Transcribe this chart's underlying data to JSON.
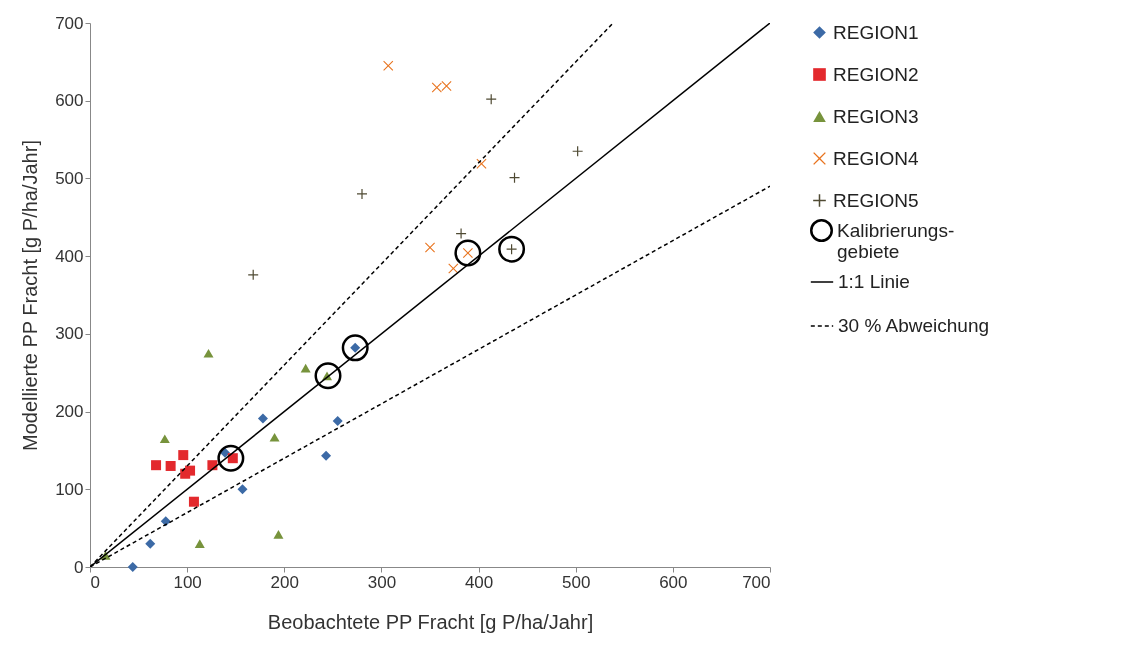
{
  "chart_data": {
    "type": "scatter",
    "xlabel": "Beobachtete PP Fracht [g P/ha/Jahr]",
    "ylabel": "Modellierte PP Fracht [g P/ha/Jahr]",
    "xlim": [
      0,
      700
    ],
    "ylim": [
      0,
      700
    ],
    "xticks": [
      0,
      100,
      200,
      300,
      400,
      500,
      600,
      700
    ],
    "yticks": [
      0,
      100,
      200,
      300,
      400,
      500,
      600,
      700
    ],
    "grid": false,
    "legend": "right",
    "series": [
      {
        "name": "REGION1",
        "color": "#3c6aa6",
        "marker": "diamond",
        "x": [
          44,
          62,
          78,
          157,
          178,
          243,
          255,
          273,
          139
        ],
        "values": [
          0,
          30,
          59,
          100,
          191,
          143,
          188,
          282,
          147
        ]
      },
      {
        "name": "REGION2",
        "color": "#e3292d",
        "marker": "square",
        "x": [
          68,
          83,
          96,
          98,
          103,
          126,
          147,
          107
        ],
        "values": [
          131,
          130,
          144,
          120,
          124,
          131,
          140,
          84
        ]
      },
      {
        "name": "REGION3",
        "color": "#77933c",
        "marker": "triangle",
        "x": [
          16,
          122,
          77,
          190,
          222,
          244,
          113,
          194
        ],
        "values": [
          15,
          275,
          165,
          167,
          256,
          246,
          30,
          42
        ]
      },
      {
        "name": "REGION4",
        "color": "#e8731e",
        "marker": "cross",
        "x": [
          307,
          357,
          367,
          403,
          350,
          389,
          374
        ],
        "values": [
          645,
          617,
          619,
          519,
          411,
          404,
          384
        ]
      },
      {
        "name": "REGION5",
        "color": "#4f4a33",
        "marker": "plus",
        "x": [
          413,
          502,
          437,
          280,
          168,
          382,
          434
        ],
        "values": [
          602,
          535,
          501,
          480,
          376,
          429,
          409
        ]
      },
      {
        "name": "1:1 Linie",
        "type": "line",
        "color": "#000000",
        "line_style": "solid",
        "marker": "none",
        "x": [
          0,
          700
        ],
        "values": [
          0,
          700
        ]
      },
      {
        "name": "30 % Abweichung",
        "type": "line",
        "color": "#000000",
        "line_style": "dashed",
        "marker": "none",
        "x": [
          0,
          538.5
        ],
        "values": [
          0,
          700
        ]
      },
      {
        "type": "line",
        "color": "#000000",
        "line_style": "dashed",
        "marker": "none",
        "x": [
          0,
          700
        ],
        "values": [
          0,
          490
        ]
      },
      {
        "name": "Kalibrierungs-gebiete",
        "color": "#000000",
        "marker": "circle",
        "x": [
          145,
          245,
          273,
          389,
          434
        ],
        "values": [
          140,
          246,
          282,
          404,
          409
        ]
      }
    ]
  }
}
